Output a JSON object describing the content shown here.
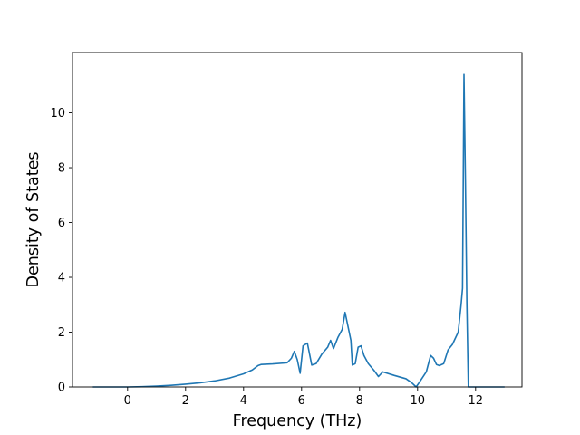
{
  "chart_data": {
    "type": "line",
    "xlabel": "Frequency (THz)",
    "ylabel": "Density of States",
    "xlim": [
      -1.9,
      13.6
    ],
    "ylim": [
      0,
      12.2
    ],
    "xticks": [
      0,
      2,
      4,
      6,
      8,
      10,
      12
    ],
    "yticks": [
      0,
      2,
      4,
      6,
      8,
      10
    ],
    "grid": false,
    "line_color": "#1f77b4",
    "series": [
      {
        "x": [
          -1.2,
          -0.5,
          0,
          0.5,
          1,
          1.5,
          2,
          2.5,
          3,
          3.5,
          4,
          4.3,
          4.5,
          4.6,
          5.0,
          5.5,
          5.65,
          5.75,
          5.85,
          5.95,
          6.05,
          6.2,
          6.35,
          6.5,
          6.7,
          6.9,
          7.0,
          7.1,
          7.25,
          7.4,
          7.5,
          7.7,
          7.75,
          7.85,
          7.95,
          8.05,
          8.15,
          8.3,
          8.5,
          8.65,
          8.8,
          9.2,
          9.6,
          9.8,
          9.95,
          10.05,
          10.3,
          10.45,
          10.55,
          10.65,
          10.75,
          10.9,
          11.05,
          11.2,
          11.4,
          11.5,
          11.55,
          11.6,
          11.65,
          11.7,
          11.75,
          11.8,
          11.9,
          12.2,
          13.0
        ],
        "y": [
          0,
          0,
          0,
          0.01,
          0.03,
          0.06,
          0.1,
          0.15,
          0.22,
          0.32,
          0.48,
          0.62,
          0.78,
          0.82,
          0.84,
          0.88,
          1.05,
          1.3,
          1.0,
          0.5,
          1.5,
          1.6,
          0.8,
          0.85,
          1.2,
          1.45,
          1.7,
          1.4,
          1.8,
          2.1,
          2.72,
          1.7,
          0.8,
          0.85,
          1.45,
          1.5,
          1.15,
          0.85,
          0.6,
          0.38,
          0.55,
          0.42,
          0.3,
          0.15,
          0,
          0.15,
          0.55,
          1.15,
          1.05,
          0.82,
          0.78,
          0.85,
          1.35,
          1.55,
          2.0,
          3.0,
          3.6,
          11.4,
          7.5,
          3.0,
          0.0,
          0,
          0,
          0,
          0
        ]
      }
    ]
  }
}
